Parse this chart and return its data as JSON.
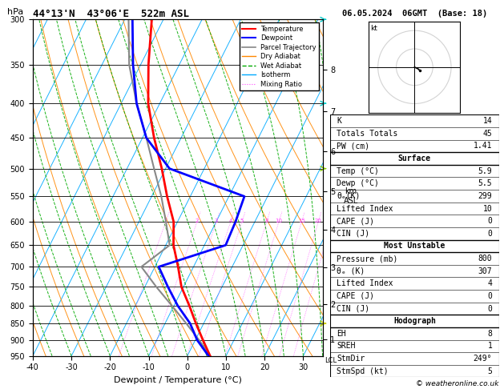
{
  "title_left": "44°13'N  43°06'E  522m ASL",
  "title_right": "06.05.2024  06GMT  (Base: 18)",
  "xlabel": "Dewpoint / Temperature (°C)",
  "pressure_ticks": [
    300,
    350,
    400,
    450,
    500,
    550,
    600,
    650,
    700,
    750,
    800,
    850,
    900,
    950
  ],
  "temp_range": [
    -40,
    35
  ],
  "mixing_ratio_values": [
    1,
    2,
    3,
    4,
    5,
    8,
    10,
    15,
    20,
    25
  ],
  "temp_profile": {
    "pressures": [
      950,
      900,
      850,
      800,
      750,
      700,
      650,
      600,
      550,
      500,
      450,
      400,
      350,
      300
    ],
    "temps": [
      5.9,
      2.0,
      -2.0,
      -6.0,
      -10.5,
      -14.0,
      -18.0,
      -21.0,
      -26.0,
      -31.0,
      -37.0,
      -43.0,
      -48.0,
      -53.0
    ]
  },
  "dewp_profile": {
    "pressures": [
      950,
      900,
      850,
      800,
      750,
      700,
      650,
      600,
      550,
      500,
      450,
      400,
      350,
      300
    ],
    "dewps": [
      5.5,
      0.5,
      -3.5,
      -9.0,
      -14.0,
      -19.0,
      -4.5,
      -5.0,
      -6.0,
      -29.0,
      -39.0,
      -46.0,
      -52.0,
      -58.0
    ]
  },
  "parcel_profile": {
    "pressures": [
      950,
      900,
      850,
      800,
      750,
      700,
      650,
      600,
      550,
      500,
      450,
      400,
      350,
      300
    ],
    "temps": [
      5.9,
      1.0,
      -4.5,
      -10.5,
      -17.0,
      -23.5,
      -19.0,
      -23.0,
      -27.5,
      -33.0,
      -39.0,
      -46.0,
      -53.0,
      -59.0
    ]
  },
  "stats": {
    "K": 14,
    "Totals_Totals": 45,
    "PW_cm": 1.41,
    "Surface_Temp": 5.9,
    "Surface_Dewp": 5.5,
    "Surface_theta_e": 299,
    "Surface_Lifted_Index": 10,
    "Surface_CAPE": 0,
    "Surface_CIN": 0,
    "MU_Pressure": 800,
    "MU_theta_e": 307,
    "MU_Lifted_Index": 4,
    "MU_CAPE": 0,
    "MU_CIN": 0,
    "EH": 8,
    "SREH": 1,
    "StmDir": 249,
    "StmSpd": 5
  },
  "colors": {
    "temperature": "#ff0000",
    "dewpoint": "#0000ff",
    "parcel": "#888888",
    "dry_adiabat": "#ff8800",
    "wet_adiabat": "#00aa00",
    "isotherm": "#00aaff",
    "mixing_ratio": "#ff44ff",
    "background": "#ffffff",
    "grid": "#000000"
  },
  "skew": 38.0,
  "p_min": 300,
  "p_max": 950
}
